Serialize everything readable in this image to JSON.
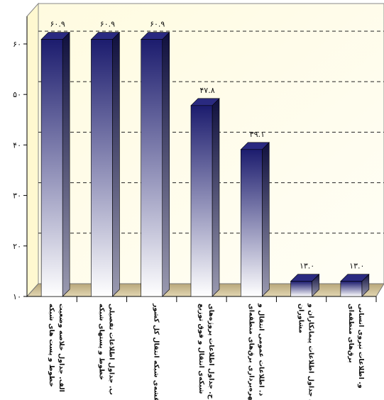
{
  "chart_data": {
    "type": "bar3d",
    "categories": [
      [
        "الف. جداول خلاصه وضعیت",
        "خطوط و پست های شبکه"
      ],
      [
        "ب. جداول اطلاعات تفصیلی",
        "خطوط و پستهای شبکه"
      ],
      [
        "ج. نقشه‌ی شبکه انتقال کل کشور"
      ],
      [
        "ح. جداول اطلاعات پروژه‌های",
        "شبکه‌ی انتقال و فوق توزیع"
      ],
      [
        "د. اطلاعات عمومی انتقال و",
        "بهره‌برداری برق‌های منطقه‌ای"
      ],
      [
        "ه. جداول اطلاعات پیمانکاران و",
        "مشاوران"
      ],
      [
        "و. اطلاعات نیروی انسانی",
        "برق‌های منطقه‌ای"
      ]
    ],
    "values": [
      60.9,
      60.9,
      60.9,
      47.8,
      39.1,
      13.0,
      13.0
    ],
    "value_labels": [
      "۶۰.۹",
      "۶۰.۹",
      "۶۰.۹",
      "۴۷.۸",
      "۳۹.۱",
      "۱۳.۰",
      "۱۳.۰"
    ],
    "color": "#1c1c6e",
    "ylim": [
      10,
      68
    ],
    "yticks": [
      {
        "value": 10,
        "label": "۱۰"
      },
      {
        "value": 20,
        "label": "۲۰"
      },
      {
        "value": 30,
        "label": "۳۰"
      },
      {
        "value": 40,
        "label": "۴۰"
      },
      {
        "value": 50,
        "label": "۵۰"
      },
      {
        "value": 60,
        "label": "۶۰"
      }
    ],
    "grid": true
  }
}
